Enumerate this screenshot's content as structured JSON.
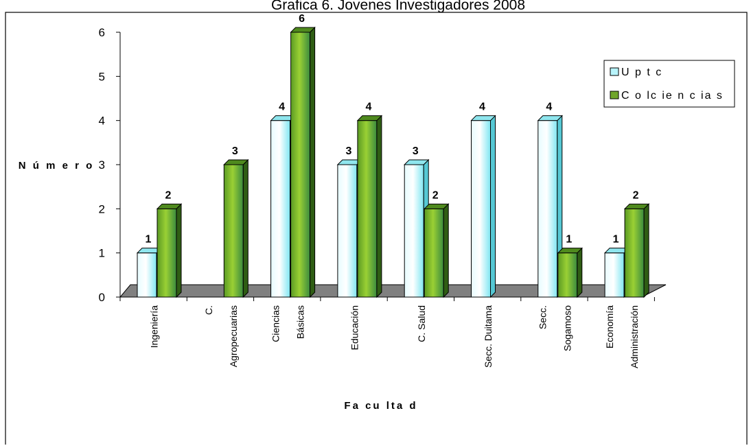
{
  "chart_data": {
    "type": "bar",
    "title": "Grafica 6. Jovenes Investigadores 2008",
    "xlabel": "Fa cu lta d",
    "ylabel": "N ú m e r o",
    "ylim": [
      0,
      6
    ],
    "yticks": [
      0,
      1,
      2,
      3,
      4,
      5,
      6
    ],
    "categories": [
      [
        "Ingeniería"
      ],
      [
        "C.",
        "Agropecuarias"
      ],
      [
        "Ciencias",
        "Básicas"
      ],
      [
        "Educación"
      ],
      [
        "C. Salud"
      ],
      [
        "Secc. Duitama"
      ],
      [
        "Secc.",
        "Sogamoso"
      ],
      [
        "Economía",
        "Administración"
      ]
    ],
    "series": [
      {
        "name": "U p t c",
        "values": [
          1,
          null,
          4,
          3,
          3,
          4,
          4,
          1
        ],
        "color": "#b8f4fb"
      },
      {
        "name": "C o lc ie n c ia s",
        "values": [
          2,
          3,
          6,
          4,
          2,
          null,
          1,
          2
        ],
        "color": "#6fa52a"
      }
    ],
    "legend_position": "right",
    "floor_color": "#808080",
    "grid": false
  }
}
